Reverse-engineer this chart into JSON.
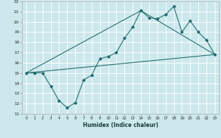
{
  "xlabel": "Humidex (Indice chaleur)",
  "xlim": [
    -0.5,
    23.5
  ],
  "ylim": [
    11,
    22
  ],
  "xticks": [
    0,
    1,
    2,
    3,
    4,
    5,
    6,
    7,
    8,
    9,
    10,
    11,
    12,
    13,
    14,
    15,
    16,
    17,
    18,
    19,
    20,
    21,
    22,
    23
  ],
  "yticks": [
    11,
    12,
    13,
    14,
    15,
    16,
    17,
    18,
    19,
    20,
    21,
    22
  ],
  "bg_color": "#cce8ec",
  "grid_color": "#b0d4d8",
  "line_color": "#1e6b6b",
  "line1_x": [
    0,
    1,
    2,
    3,
    4,
    5,
    6,
    7,
    8,
    9,
    10,
    11,
    12,
    13,
    14,
    15,
    16,
    17,
    18,
    19,
    20,
    21,
    22,
    23
  ],
  "line1_y": [
    15.0,
    15.0,
    15.0,
    13.7,
    12.3,
    11.6,
    12.1,
    14.3,
    14.8,
    16.4,
    16.6,
    17.0,
    18.4,
    19.5,
    21.1,
    20.4,
    20.3,
    20.7,
    21.5,
    19.0,
    20.1,
    19.0,
    18.2,
    16.8
  ],
  "line2_x": [
    0,
    23
  ],
  "line2_y": [
    15.0,
    16.8
  ],
  "line3_x": [
    0,
    14,
    23
  ],
  "line3_y": [
    15.0,
    21.1,
    16.8
  ]
}
